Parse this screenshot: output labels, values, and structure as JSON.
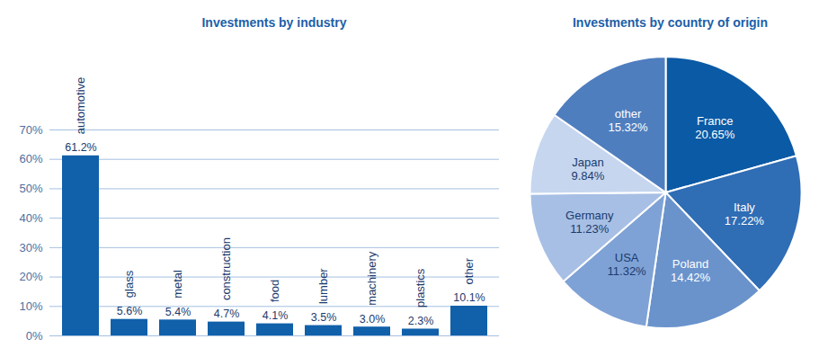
{
  "chart_data": [
    {
      "type": "bar",
      "title": "Investments by industry",
      "categories": [
        "automotive",
        "glass",
        "metal",
        "construction",
        "food",
        "lumber",
        "machinery",
        "plastics",
        "other"
      ],
      "values": [
        61.2,
        5.6,
        5.4,
        4.7,
        4.1,
        3.5,
        3.0,
        2.3,
        10.1
      ],
      "value_labels": [
        "61.2%",
        "5.6%",
        "5.4%",
        "4.7%",
        "4.1%",
        "3.5%",
        "3.0%",
        "2.3%",
        "10.1%"
      ],
      "color": "#1060aa",
      "ylim": [
        0,
        70
      ],
      "yticks": [
        {
          "value": 0,
          "label": "0%"
        },
        {
          "value": 10,
          "label": "10%"
        },
        {
          "value": 20,
          "label": "20%"
        },
        {
          "value": 30,
          "label": "30%"
        },
        {
          "value": 40,
          "label": "40%"
        },
        {
          "value": 50,
          "label": "50%"
        },
        {
          "value": 60,
          "label": "60%"
        },
        {
          "value": 70,
          "label": "70%"
        }
      ],
      "grid": true,
      "data_labels": true,
      "tick_labels": "y"
    },
    {
      "type": "pie",
      "title": "Investments by country of origin",
      "categories": [
        "France",
        "Italy",
        "Poland",
        "USA",
        "Germany",
        "Japan",
        "other"
      ],
      "values": [
        20.65,
        17.22,
        14.42,
        11.32,
        11.23,
        9.84,
        15.32
      ],
      "value_labels": [
        "20.65%",
        "17.22%",
        "14.42%",
        "11.32%",
        "11.23%",
        "9.84%",
        "15.32%"
      ],
      "colors": [
        "#0b5aa5",
        "#2f6db5",
        "#6a93cc",
        "#7fa2d6",
        "#a7bfe4",
        "#c6d6ef",
        "#4f7ebf"
      ],
      "data_labels": true
    }
  ]
}
